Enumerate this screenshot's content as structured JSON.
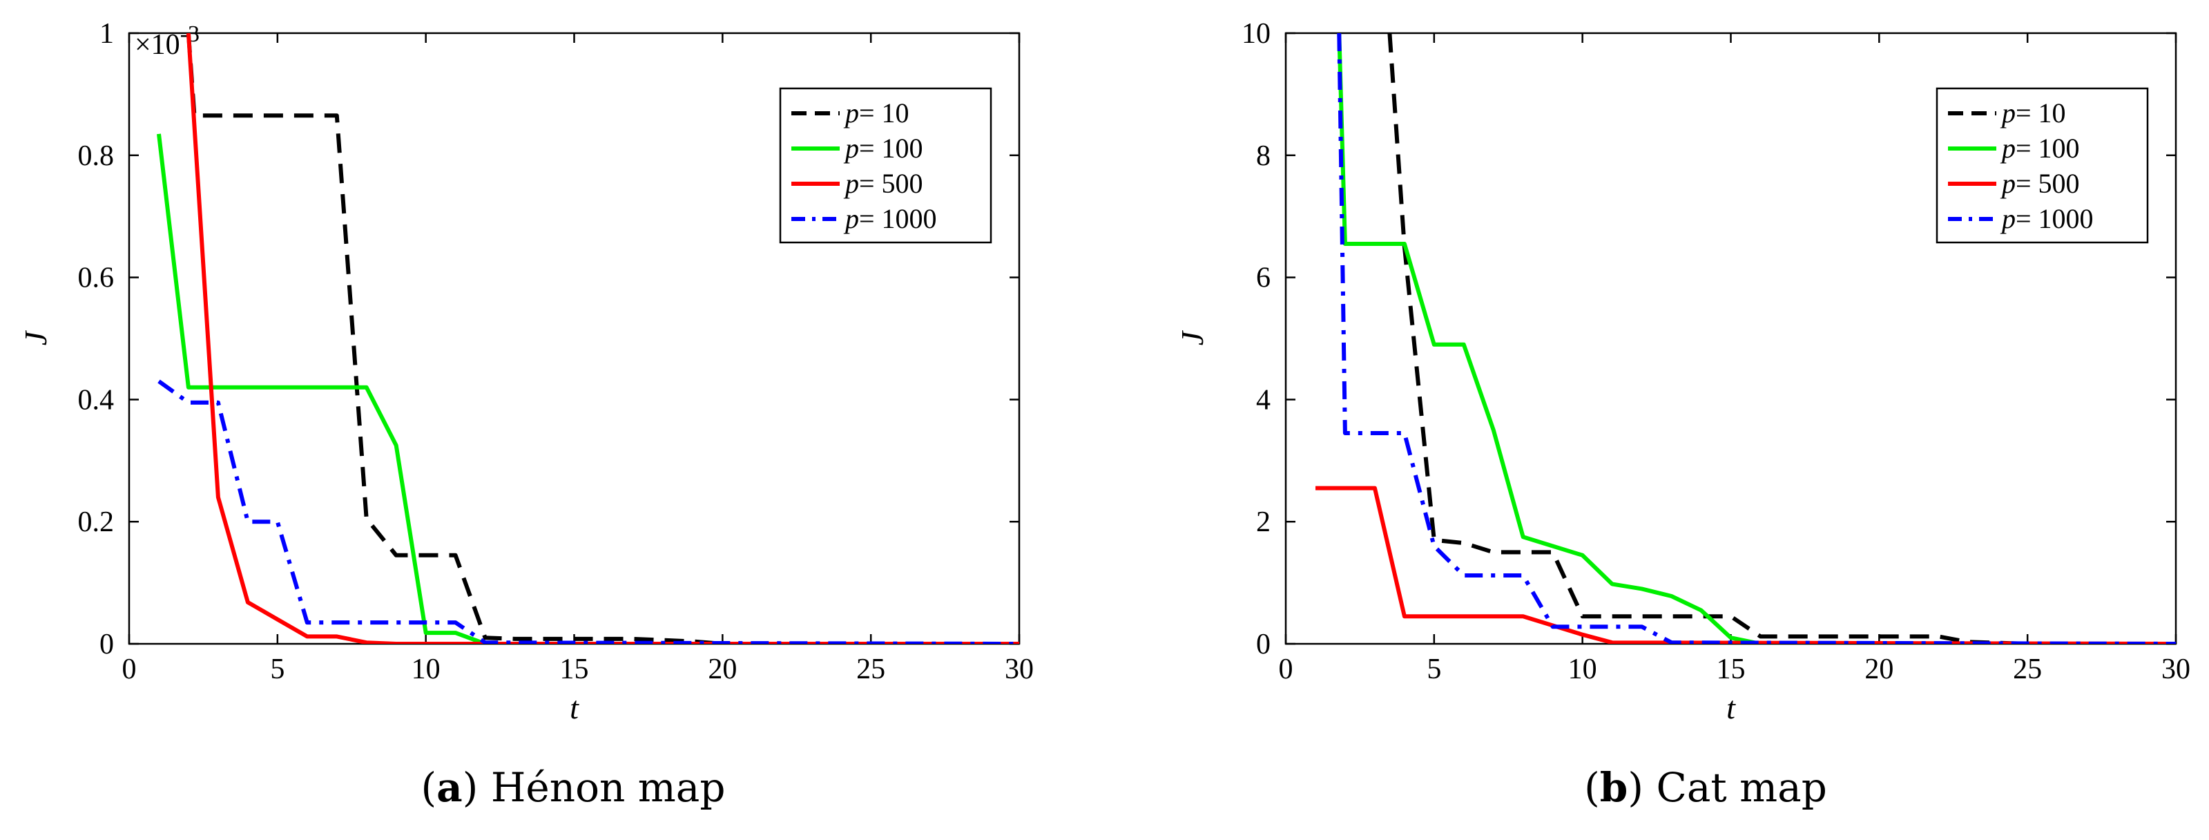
{
  "chart_data": [
    {
      "type": "line",
      "panel": "a",
      "caption_letter": "a",
      "caption_text": "Hénon map",
      "xlabel": "t",
      "ylabel": "J",
      "xlim": [
        0,
        30
      ],
      "ylim": [
        0,
        1
      ],
      "xticks": [
        0,
        5,
        10,
        15,
        20,
        25,
        30
      ],
      "yticks": [
        0,
        0.2,
        0.4,
        0.6,
        0.8,
        1
      ],
      "ytick_labels": [
        "0",
        "0.2",
        "0.4",
        "0.6",
        "0.8",
        "1"
      ],
      "exponent_base": "×10",
      "exponent_power": "-3",
      "legend_position": "top-right",
      "series": [
        {
          "name": "p",
          "legend_value": "= 10",
          "color": "#000000",
          "dash": "dashed",
          "x": [
            2,
            2.2,
            7,
            8,
            9,
            10,
            11,
            12,
            13,
            15,
            17,
            19,
            20,
            30
          ],
          "y": [
            1.0,
            0.865,
            0.865,
            0.205,
            0.145,
            0.145,
            0.145,
            0.01,
            0.008,
            0.008,
            0.008,
            0.004,
            0.0,
            0.0
          ]
        },
        {
          "name": "p",
          "legend_value": "= 100",
          "color": "#00ee00",
          "dash": "solid",
          "x": [
            1,
            2,
            3,
            8,
            9,
            10,
            11,
            12,
            30
          ],
          "y": [
            0.835,
            0.42,
            0.42,
            0.42,
            0.325,
            0.018,
            0.018,
            0.0,
            0.0
          ]
        },
        {
          "name": "p",
          "legend_value": "= 500",
          "color": "#ff0000",
          "dash": "solid",
          "x": [
            2,
            3,
            4,
            5,
            6,
            7,
            8,
            9,
            30
          ],
          "y": [
            1.0,
            0.24,
            0.068,
            0.04,
            0.012,
            0.012,
            0.002,
            0.0,
            0.0
          ]
        },
        {
          "name": "p",
          "legend_value": "= 1000",
          "color": "#0000ff",
          "dash": "dashdot",
          "x": [
            1,
            2,
            3,
            4,
            5,
            6,
            7,
            11,
            12,
            30
          ],
          "y": [
            0.43,
            0.395,
            0.395,
            0.2,
            0.2,
            0.035,
            0.035,
            0.035,
            0.002,
            0.0
          ]
        }
      ]
    },
    {
      "type": "line",
      "panel": "b",
      "caption_letter": "b",
      "caption_text": "Cat map",
      "xlabel": "t",
      "ylabel": "J",
      "xlim": [
        0,
        30
      ],
      "ylim": [
        0,
        10
      ],
      "xticks": [
        0,
        5,
        10,
        15,
        20,
        25,
        30
      ],
      "yticks": [
        0,
        2,
        4,
        6,
        8,
        10
      ],
      "ytick_labels": [
        "0",
        "2",
        "4",
        "6",
        "8",
        "10"
      ],
      "legend_position": "top-right",
      "series": [
        {
          "name": "p",
          "legend_value": "= 10",
          "color": "#000000",
          "dash": "dashed",
          "x": [
            3.5,
            4,
            5,
            6,
            7,
            9,
            10,
            15,
            16,
            22,
            23,
            25,
            30
          ],
          "y": [
            10.0,
            6.5,
            1.7,
            1.65,
            1.5,
            1.5,
            0.45,
            0.45,
            0.12,
            0.12,
            0.03,
            0.0,
            0.0
          ]
        },
        {
          "name": "p",
          "legend_value": "= 100",
          "color": "#00ee00",
          "dash": "solid",
          "x": [
            1.8,
            2,
            4,
            5,
            6,
            7,
            8,
            10,
            11,
            12,
            13,
            14,
            15,
            16,
            30
          ],
          "y": [
            10.0,
            6.55,
            6.55,
            4.9,
            4.9,
            3.5,
            1.75,
            1.45,
            0.98,
            0.9,
            0.78,
            0.55,
            0.1,
            0.0,
            0.0
          ]
        },
        {
          "name": "p",
          "legend_value": "= 500",
          "color": "#ff0000",
          "dash": "solid",
          "x": [
            1,
            3,
            4,
            8,
            10,
            11,
            30
          ],
          "y": [
            2.55,
            2.55,
            0.45,
            0.45,
            0.15,
            0.02,
            0.0
          ]
        },
        {
          "name": "p",
          "legend_value": "= 1000",
          "color": "#0000ff",
          "dash": "dashdot",
          "x": [
            1.8,
            2,
            4,
            5,
            6,
            8,
            9,
            12,
            13,
            30
          ],
          "y": [
            10.0,
            3.45,
            3.45,
            1.6,
            1.12,
            1.12,
            0.28,
            0.28,
            0.02,
            0.0
          ]
        }
      ]
    }
  ]
}
